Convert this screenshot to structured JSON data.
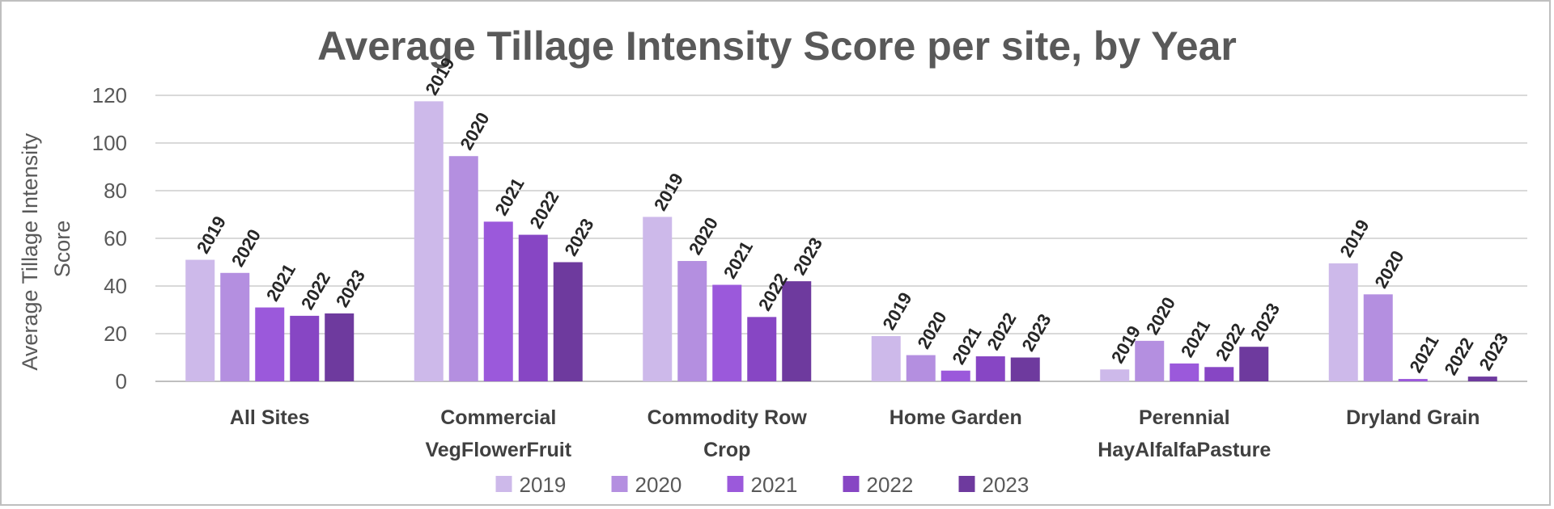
{
  "chart_data": {
    "type": "bar",
    "title": "Average Tillage Intensity Score per site,  by Year",
    "ylabel_lines": [
      "Average Tillage Intensity",
      "Score"
    ],
    "xlabel": "",
    "ylim": [
      0,
      120
    ],
    "yticks": [
      0,
      20,
      40,
      60,
      80,
      100,
      120
    ],
    "grid": true,
    "legend_position": "bottom",
    "categories": [
      [
        "All Sites"
      ],
      [
        "Commercial",
        "VegFlowerFruit"
      ],
      [
        "Commodity Row",
        "Crop"
      ],
      [
        "Home Garden"
      ],
      [
        "Perennial",
        "HayAlfalfaPasture"
      ],
      [
        "Dryland Grain"
      ]
    ],
    "series": [
      {
        "name": "2019",
        "color": "#cdb9ea",
        "values": [
          51,
          117.5,
          69,
          19,
          5,
          49.5
        ]
      },
      {
        "name": "2020",
        "color": "#b48fe0",
        "values": [
          45.5,
          94.5,
          50.5,
          11,
          17,
          36.5
        ]
      },
      {
        "name": "2021",
        "color": "#9b59db",
        "values": [
          31,
          67,
          40.5,
          4.5,
          7.5,
          1
        ]
      },
      {
        "name": "2022",
        "color": "#8746c4",
        "values": [
          27.5,
          61.5,
          27,
          10.5,
          6,
          0
        ]
      },
      {
        "name": "2023",
        "color": "#6e3a9e",
        "values": [
          28.5,
          50,
          42,
          10,
          14.5,
          2
        ]
      }
    ]
  }
}
